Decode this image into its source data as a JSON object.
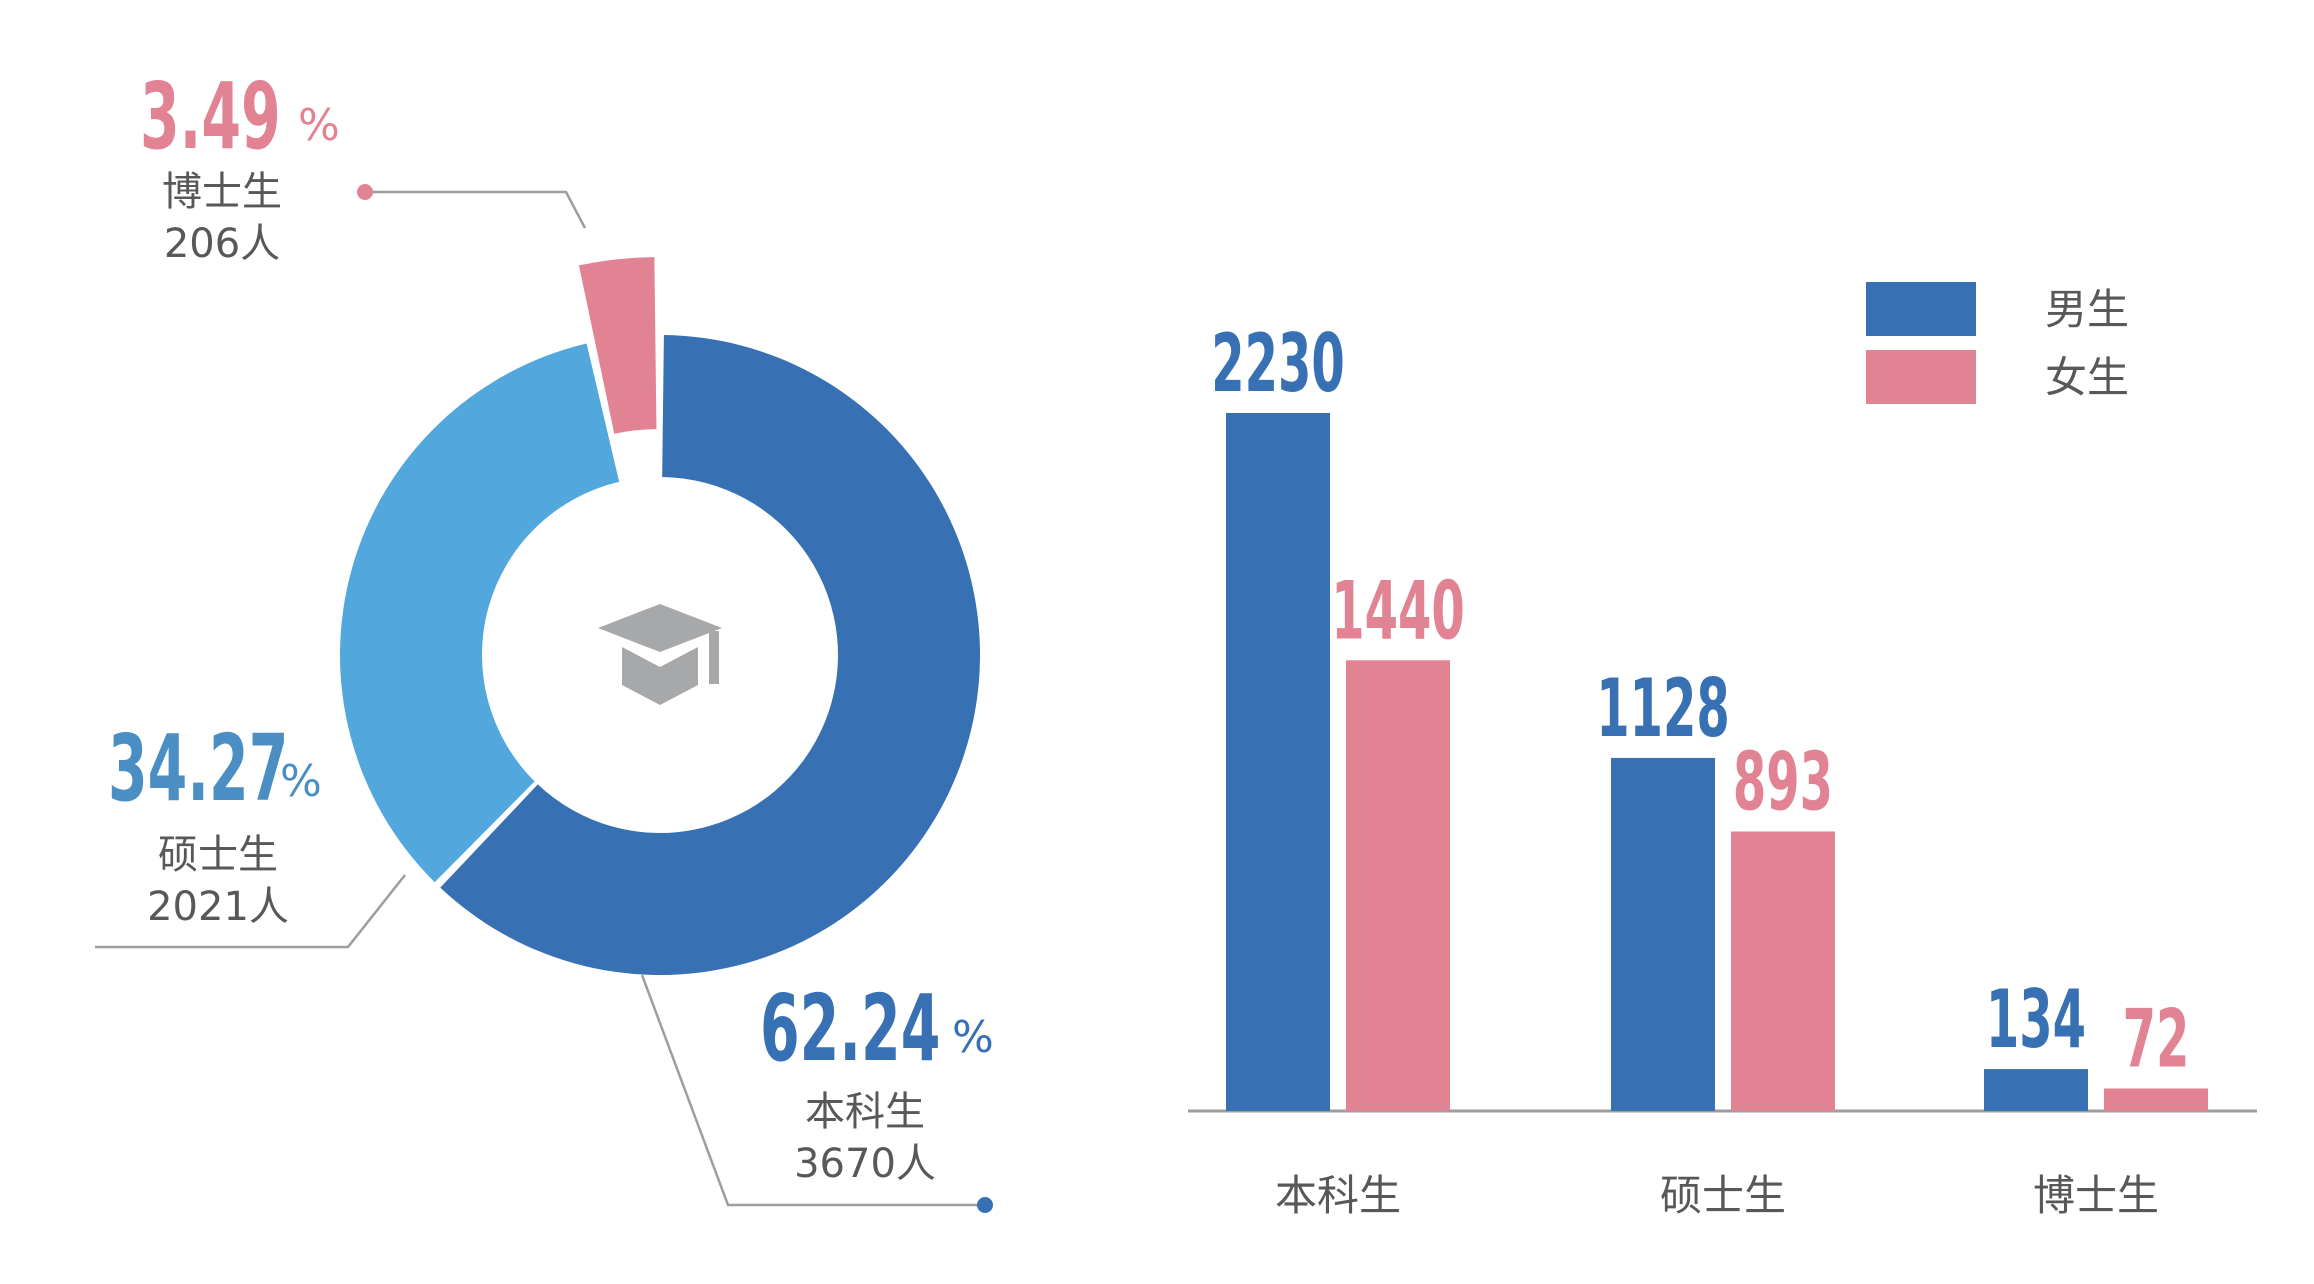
{
  "chart_data": [
    {
      "type": "pie",
      "variant": "donut",
      "center_icon": "graduation-cap-icon",
      "slices": [
        {
          "name": "本科生",
          "count_label": "3670人",
          "value": 62.24,
          "pct_text": "62.24",
          "color": "#3770b3"
        },
        {
          "name": "硕士生",
          "count_label": "2021人",
          "value": 34.27,
          "pct_text": "34.27",
          "color": "#52a7dd",
          "label_color": "#4a8ec4"
        },
        {
          "name": "博士生",
          "count_label": "206人",
          "value": 3.49,
          "pct_text": "3.49",
          "color": "#e28394",
          "exploded": true
        }
      ],
      "pct_unit": "%"
    },
    {
      "type": "bar",
      "categories": [
        "本科生",
        "硕士生",
        "博士生"
      ],
      "series": [
        {
          "name": "男生",
          "values": [
            2230,
            1128,
            134
          ],
          "color": "#3770b3"
        },
        {
          "name": "女生",
          "values": [
            1440,
            893,
            72
          ],
          "color": "#e28394"
        }
      ],
      "ylim": [
        0,
        2230
      ],
      "legend": "top-right",
      "grid": false
    }
  ]
}
